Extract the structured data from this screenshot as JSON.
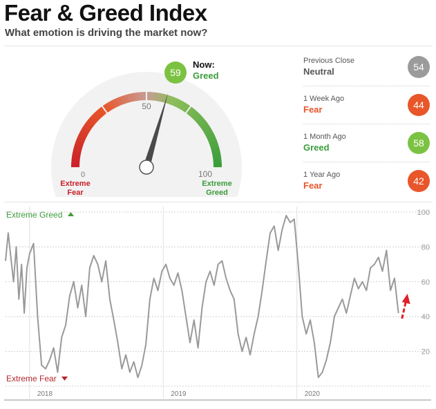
{
  "header": {
    "title": "Fear & Greed Index",
    "subtitle": "What emotion is driving the market now?"
  },
  "gauge": {
    "value": 59,
    "now_label": "Now:",
    "now_rating": "Greed",
    "tick_min": "0",
    "tick_mid": "50",
    "tick_max": "100",
    "left_label_line1": "Extreme",
    "left_label_line2": "Fear",
    "right_label_line1": "Extreme",
    "right_label_line2": "Greed",
    "value_text": "59",
    "colors": {
      "fear": "#c8202a",
      "greed": "#3a9d3a",
      "now_circle": "#7cc242"
    }
  },
  "history": [
    {
      "label": "Previous Close",
      "rating": "Neutral",
      "value": "54",
      "rating_color": "#555555",
      "circle_color": "#9b9b9b"
    },
    {
      "label": "1 Week Ago",
      "rating": "Fear",
      "value": "44",
      "rating_color": "#e8562a",
      "circle_color": "#e8562a"
    },
    {
      "label": "1 Month Ago",
      "rating": "Greed",
      "value": "58",
      "rating_color": "#3a9d3a",
      "circle_color": "#7cc242"
    },
    {
      "label": "1 Year Ago",
      "rating": "Fear",
      "value": "42",
      "rating_color": "#e8562a",
      "circle_color": "#e8562a"
    }
  ],
  "chart_data": {
    "type": "line",
    "top_label": "Extreme Greed",
    "bottom_label": "Extreme Fear",
    "top_label_color": "#3a9d3a",
    "bottom_label_color": "#b3262c",
    "series_color": "#999999",
    "arrow_color": "#e0202a",
    "ylim": [
      0,
      100
    ],
    "yticks": [
      "20",
      "40",
      "60",
      "80",
      "100"
    ],
    "x_ticks": [
      "2018",
      "2019",
      "2020"
    ],
    "x_tick_positions": [
      2018.0,
      2019.0,
      2020.0
    ],
    "xlim": [
      2017.82,
      2020.87
    ],
    "x": [
      2017.82,
      2017.84,
      2017.86,
      2017.88,
      2017.9,
      2017.92,
      2017.94,
      2017.96,
      2017.98,
      2018.0,
      2018.03,
      2018.06,
      2018.09,
      2018.12,
      2018.15,
      2018.18,
      2018.21,
      2018.24,
      2018.27,
      2018.3,
      2018.33,
      2018.36,
      2018.39,
      2018.42,
      2018.45,
      2018.48,
      2018.51,
      2018.54,
      2018.57,
      2018.6,
      2018.63,
      2018.66,
      2018.69,
      2018.72,
      2018.75,
      2018.78,
      2018.81,
      2018.84,
      2018.87,
      2018.9,
      2018.93,
      2018.96,
      2018.99,
      2019.02,
      2019.05,
      2019.08,
      2019.11,
      2019.14,
      2019.17,
      2019.2,
      2019.23,
      2019.26,
      2019.29,
      2019.32,
      2019.35,
      2019.38,
      2019.41,
      2019.44,
      2019.47,
      2019.5,
      2019.53,
      2019.56,
      2019.59,
      2019.62,
      2019.65,
      2019.68,
      2019.71,
      2019.74,
      2019.77,
      2019.8,
      2019.83,
      2019.86,
      2019.89,
      2019.92,
      2019.95,
      2019.98,
      2020.01,
      2020.04,
      2020.07,
      2020.1,
      2020.13,
      2020.16,
      2020.19,
      2020.22,
      2020.25,
      2020.28,
      2020.31,
      2020.34,
      2020.37,
      2020.4,
      2020.43,
      2020.46,
      2020.49,
      2020.52,
      2020.55,
      2020.58,
      2020.61,
      2020.64,
      2020.67,
      2020.7,
      2020.73,
      2020.76
    ],
    "y": [
      72,
      88,
      74,
      60,
      80,
      50,
      70,
      42,
      68,
      76,
      82,
      40,
      12,
      10,
      15,
      22,
      8,
      28,
      35,
      52,
      60,
      45,
      58,
      40,
      68,
      75,
      70,
      60,
      72,
      50,
      38,
      25,
      10,
      18,
      8,
      14,
      5,
      12,
      24,
      50,
      62,
      55,
      66,
      70,
      62,
      58,
      65,
      55,
      40,
      25,
      38,
      22,
      45,
      60,
      66,
      58,
      70,
      72,
      62,
      55,
      50,
      30,
      20,
      28,
      18,
      30,
      40,
      55,
      72,
      88,
      92,
      78,
      90,
      98,
      94,
      96,
      70,
      40,
      30,
      38,
      25,
      5,
      8,
      15,
      25,
      40,
      45,
      50,
      42,
      52,
      62,
      56,
      60,
      55,
      68,
      70,
      74,
      66,
      78,
      55,
      62,
      42
    ]
  }
}
